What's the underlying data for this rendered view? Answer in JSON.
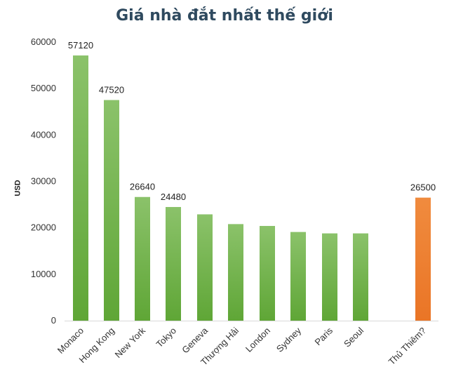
{
  "chart_data": {
    "type": "bar",
    "title": "Giá nhà đắt nhất thế giới",
    "ylabel": "USD",
    "xlabel": "",
    "ylim": [
      0,
      60000
    ],
    "yticks": [
      "0",
      "10000",
      "20000",
      "30000",
      "40000",
      "50000",
      "60000"
    ],
    "grid": false,
    "categories": [
      "Monaco",
      "Hong Kong",
      "New York",
      "Tokyo",
      "Geneva",
      "Thượng Hải",
      "London",
      "Sydney",
      "Paris",
      "Seoul",
      "Thủ Thiêm?"
    ],
    "values": [
      57120,
      47520,
      26640,
      24480,
      22900,
      20800,
      20400,
      19100,
      18800,
      18800,
      26500
    ],
    "data_labels": [
      "57120",
      "47520",
      "26640",
      "24480",
      "",
      "",
      "",
      "",
      "",
      "",
      "26500"
    ],
    "colors": {
      "green_top": "#8bc26a",
      "green_bottom": "#5fa636",
      "orange_top": "#f08b3e",
      "orange_bottom": "#ea7526",
      "highlight_category": "Thủ Thiêm?"
    }
  }
}
